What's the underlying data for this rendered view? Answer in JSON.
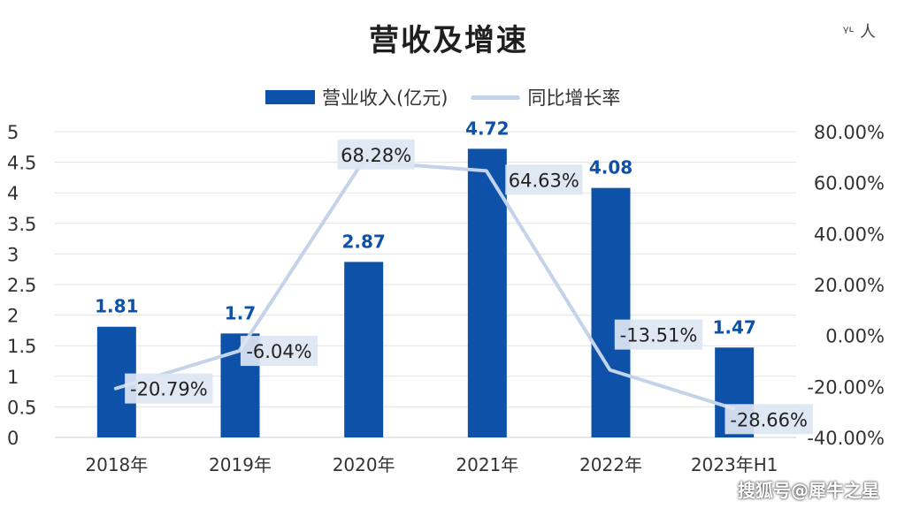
{
  "chart_data": {
    "type": "bar+line",
    "title": "营收及增速",
    "categories": [
      "2018年",
      "2019年",
      "2020年",
      "2021年",
      "2022年",
      "2023年H1"
    ],
    "series": [
      {
        "name": "营业收入(亿元)",
        "type": "bar",
        "axis": "left",
        "values": [
          1.81,
          1.7,
          2.87,
          4.72,
          4.08,
          1.47
        ],
        "labels": [
          "1.81",
          "1.7",
          "2.87",
          "4.72",
          "4.08",
          "1.47"
        ]
      },
      {
        "name": "同比增长率",
        "type": "line",
        "axis": "right",
        "values": [
          -20.79,
          -6.04,
          68.28,
          64.63,
          -13.51,
          -28.66
        ],
        "labels": [
          "-20.79%",
          "-6.04%",
          "68.28%",
          "64.63%",
          "-13.51%",
          "-28.66%"
        ]
      }
    ],
    "y_left": {
      "range": [
        0,
        5
      ],
      "ticks": [
        "0",
        "0.5",
        "1",
        "1.5",
        "2",
        "2.5",
        "3",
        "3.5",
        "4",
        "4.5",
        "5"
      ]
    },
    "y_right": {
      "range": [
        -40,
        80
      ],
      "ticks": [
        "-40.00%",
        "-20.00%",
        "0.00%",
        "20.00%",
        "40.00%",
        "60.00%",
        "80.00%"
      ]
    },
    "grid": true,
    "legend_position": "top-center",
    "colors": {
      "bar": "#0d52a8",
      "line": "#c3d3ea",
      "label_box": "#dde6f3"
    }
  },
  "watermark": "搜狐号@犀牛之星",
  "decoration": "ᵞᶫ 人"
}
